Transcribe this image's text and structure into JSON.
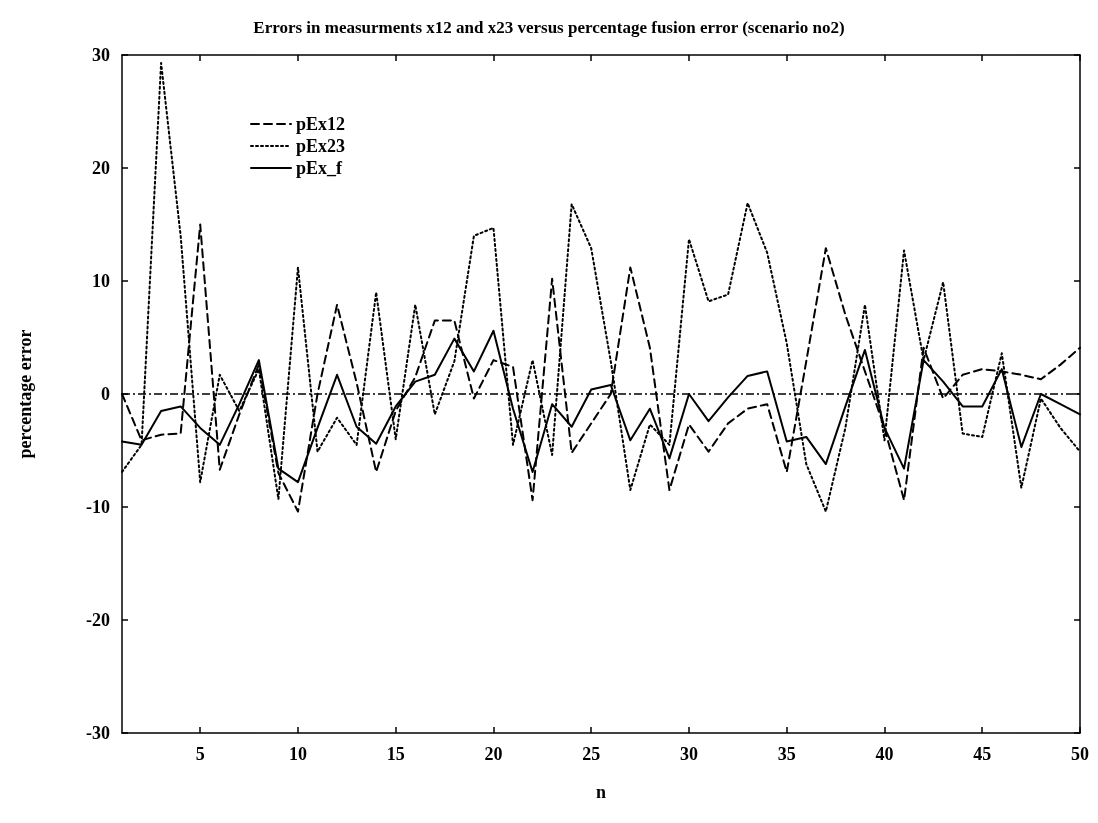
{
  "chart_data": {
    "type": "line",
    "title": "Errors in measurments x12 and x23 versus percentage fusion error (scenario no2)",
    "xlabel": "n",
    "ylabel": "percentage error",
    "x": [
      1,
      2,
      3,
      4,
      5,
      6,
      7,
      8,
      9,
      10,
      11,
      12,
      13,
      14,
      15,
      16,
      17,
      18,
      19,
      20,
      21,
      22,
      23,
      24,
      25,
      26,
      27,
      28,
      29,
      30,
      31,
      32,
      33,
      34,
      35,
      36,
      37,
      38,
      39,
      40,
      41,
      42,
      43,
      44,
      45,
      46,
      47,
      48,
      49,
      50
    ],
    "series": [
      {
        "name": "pEx12",
        "color": "#000000",
        "line_style": "dashed",
        "values": [
          0,
          -4.1,
          -3.6,
          -3.5,
          15,
          -6.7,
          -1.8,
          2.6,
          -7,
          -10.4,
          0,
          7.9,
          1,
          -6.9,
          -1.5,
          1.5,
          6.5,
          6.5,
          -0.4,
          3,
          2.4,
          -9.4,
          10.2,
          -5.2,
          -2.6,
          0,
          11.2,
          4.1,
          -8.5,
          -2.7,
          -5.1,
          -2.6,
          -1.3,
          -0.9,
          -6.9,
          2.9,
          12.9,
          7,
          2,
          -3,
          -9.4,
          4.1,
          -0.4,
          1.7,
          2.2,
          2,
          1.7,
          1.3,
          2.6,
          4.1
        ]
      },
      {
        "name": "pEx23",
        "color": "#000000",
        "line_style": "dotted",
        "values": [
          -6.9,
          -4.5,
          29.3,
          14,
          -7.8,
          1.7,
          -1.5,
          2.2,
          -9.3,
          11.2,
          -5.1,
          -2.1,
          -4.5,
          9,
          -4,
          7.9,
          -1.8,
          2.9,
          14,
          14.7,
          -4.5,
          3,
          -5.4,
          16.8,
          12.9,
          2.9,
          -8.5,
          -2.7,
          -4.5,
          13.7,
          8.2,
          8.8,
          16.9,
          12.5,
          4.5,
          -6.2,
          -10.4,
          -3,
          7.9,
          -4.1,
          12.7,
          3,
          9.9,
          -3.5,
          -3.8,
          3.6,
          -8.3,
          -0.4,
          -3,
          -5.1
        ]
      },
      {
        "name": "pEx_f",
        "color": "#000000",
        "line_style": "solid",
        "values": [
          -4.2,
          -4.5,
          -1.5,
          -1.1,
          -3,
          -4.5,
          -0.9,
          3,
          -6.6,
          -7.8,
          -3,
          1.7,
          -2.9,
          -4.4,
          -1.1,
          1.1,
          1.7,
          4.9,
          2,
          5.6,
          -1.3,
          -6.9,
          -0.9,
          -2.9,
          0.4,
          0.8,
          -4.1,
          -1.3,
          -5.7,
          0,
          -2.4,
          -0.3,
          1.6,
          2,
          -4.2,
          -3.8,
          -6.2,
          -1.1,
          3.9,
          -3,
          -6.6,
          3,
          1.1,
          -1.1,
          -1.1,
          2.2,
          -4.7,
          0,
          -0.9,
          -1.8
        ]
      }
    ],
    "xlim": [
      1,
      50
    ],
    "xticks": [
      5,
      10,
      15,
      20,
      25,
      30,
      35,
      40,
      45,
      50
    ],
    "ylim": [
      -30,
      30
    ],
    "yticks": [
      -30,
      -20,
      -10,
      0,
      10,
      20,
      30
    ],
    "ref_lines": [
      {
        "axis": "y",
        "value": 0
      }
    ],
    "grid": false,
    "legend": "top left",
    "marker": "none"
  }
}
